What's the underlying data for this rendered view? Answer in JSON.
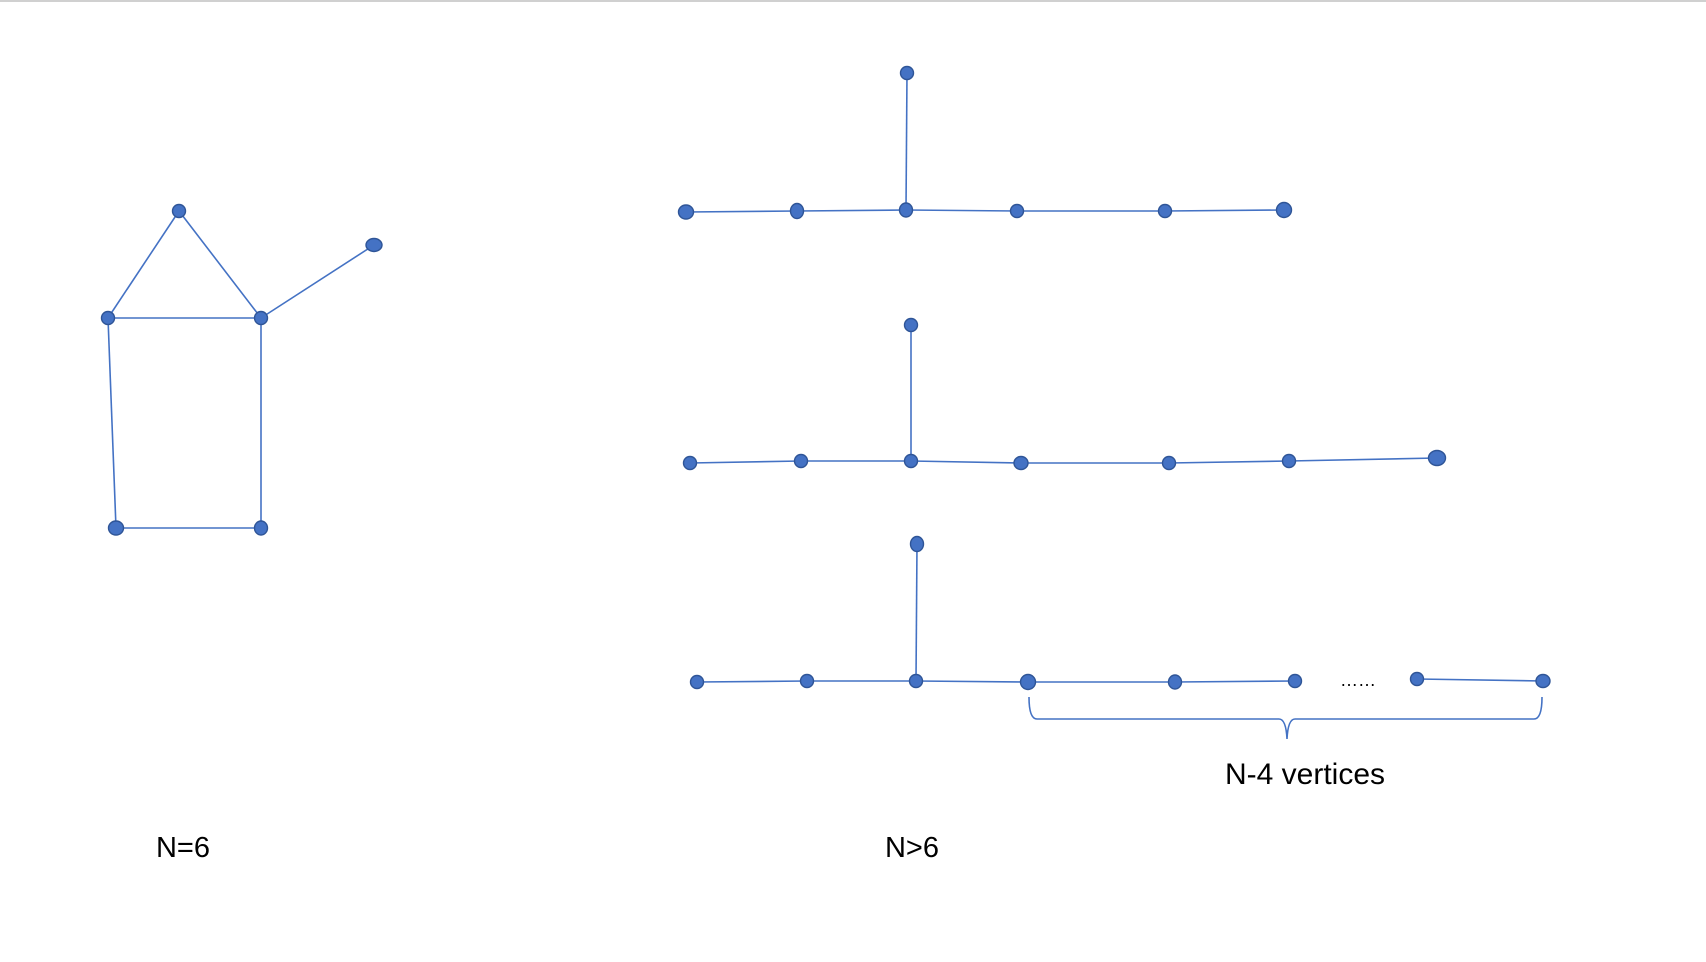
{
  "labels": {
    "n6": "N=6",
    "ngt6": "N>6",
    "ellipsis": "……",
    "brace_label": "N-4 vertices"
  },
  "colors": {
    "line": "#4472C4",
    "node_fill": "#4472C4",
    "node_stroke": "#2F5597",
    "text": "#000000",
    "background": "#ffffff"
  }
}
